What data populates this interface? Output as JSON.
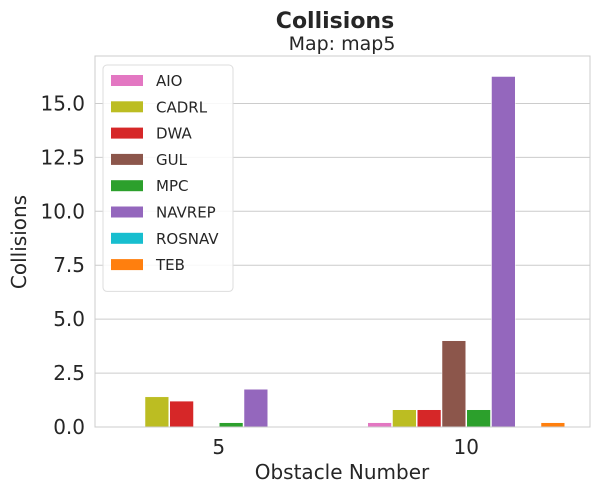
{
  "chart_data": {
    "type": "bar",
    "title": "Collisions",
    "subtitle": "Map: map5",
    "xlabel": "Obstacle Number",
    "ylabel": "Collisions",
    "categories": [
      "5",
      "10"
    ],
    "ylim": [
      0,
      17.2
    ],
    "yticks": [
      0.0,
      2.5,
      5.0,
      7.5,
      10.0,
      12.5,
      15.0
    ],
    "ytick_labels": [
      "0.0",
      "2.5",
      "5.0",
      "7.5",
      "10.0",
      "12.5",
      "15.0"
    ],
    "grid": true,
    "legend_position": "top-left",
    "series": [
      {
        "name": "AIO",
        "color": "#e377c2",
        "values": [
          0.0,
          0.2
        ]
      },
      {
        "name": "CADRL",
        "color": "#bcbd22",
        "values": [
          1.4,
          0.8
        ]
      },
      {
        "name": "DWA",
        "color": "#d62728",
        "values": [
          1.2,
          0.8
        ]
      },
      {
        "name": "GUL",
        "color": "#8c564b",
        "values": [
          0.0,
          4.0
        ]
      },
      {
        "name": "MPC",
        "color": "#2ca02c",
        "values": [
          0.2,
          0.8
        ]
      },
      {
        "name": "NAVREP",
        "color": "#9467bd",
        "values": [
          1.75,
          16.25
        ]
      },
      {
        "name": "ROSNAV",
        "color": "#17becf",
        "values": [
          0.0,
          0.0
        ]
      },
      {
        "name": "TEB",
        "color": "#ff7f0e",
        "values": [
          0.0,
          0.2
        ]
      }
    ]
  }
}
